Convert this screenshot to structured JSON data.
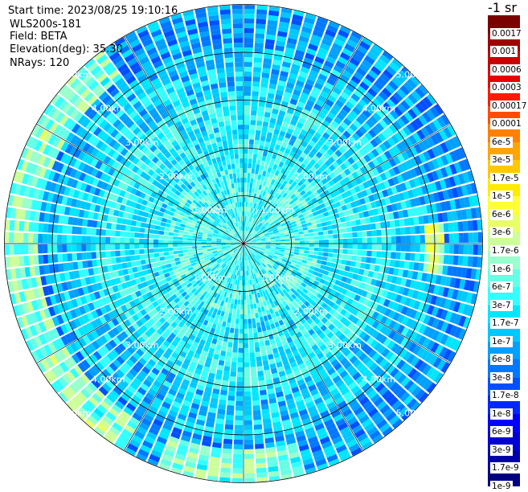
{
  "header": {
    "start_time": "Start time: 2023/08/25 19:10:16",
    "instrument": "WLS200s-181",
    "field": "Field: BETA",
    "elevation": "Elevation(deg): 35.30",
    "nrays": "NRays: 120"
  },
  "colorbar": {
    "unit": "-1 sr",
    "colors": [
      "#7a0000",
      "#a00000",
      "#c80000",
      "#e80000",
      "#ff1a00",
      "#ff4d00",
      "#ff8000",
      "#ffa400",
      "#ffc800",
      "#ffeb00",
      "#ffff33",
      "#e8ff66",
      "#ccff99",
      "#99ffcc",
      "#66ffe6",
      "#33ffff",
      "#00e6ff",
      "#00c8ff",
      "#00a0ff",
      "#0078ff",
      "#0050ff",
      "#0028ff",
      "#0000ff",
      "#0000d2",
      "#0000aa",
      "#000080"
    ],
    "labels": [
      "",
      "0.0017",
      "0.001",
      "0.0006",
      "0.0003",
      "0.00017",
      "0.0001",
      "6e-5",
      "3e-5",
      "1.7e-5",
      "1e-5",
      "6e-6",
      "3e-6",
      "1.7e-6",
      "1e-6",
      "6e-7",
      "3e-7",
      "1.7e-7",
      "1e-7",
      "6e-8",
      "3e-8",
      "1.7e-8",
      "1e-8",
      "6e-9",
      "3e-9",
      "1.7e-9",
      "1e-9"
    ]
  },
  "range_rings": [
    "1.00km",
    "2.00km",
    "3.00km",
    "4.00km",
    "5.00km"
  ],
  "spokes_count": 12,
  "rays_count": 120,
  "colors": {
    "background": "#ffffff",
    "grid": "#000000",
    "ring_labels": "#ffffff"
  }
}
